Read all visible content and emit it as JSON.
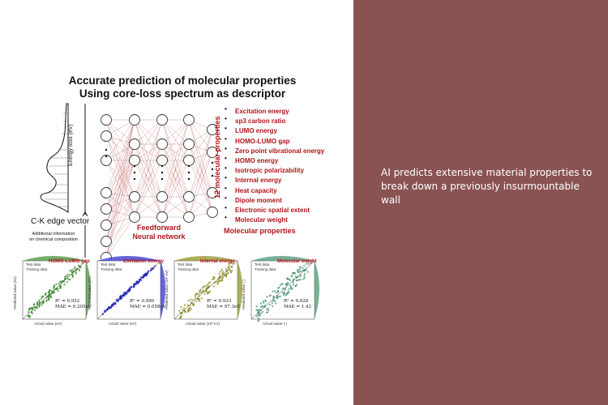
{
  "figure": {
    "title_line1": "Accurate prediction of molecular properties",
    "title_line2": "Using core-loss spectrum as descriptor",
    "energy_loss_label": "Energy loss (eV)",
    "ck_label": "C-K edge vector",
    "additional_info_line1": "Additional information",
    "additional_info_line2": "on chemical composition",
    "network_label_line1": "Feedforward",
    "network_label_line2": "Neural network",
    "twelve_props_label": "12 molecular properties",
    "molecular_properties_label": "Molecular properties",
    "properties": [
      "Excitation energy",
      "sp3 carbon ratio",
      "LUMO energy",
      "HOMO-LUMO gap",
      "Zero point vibrational energy",
      "HOMO energy",
      "Isotropic polarizability",
      "Internal energy",
      "Heat capacity",
      "Dipole moment",
      "Electronic spatial extent",
      "Molecular weight"
    ],
    "legend_test": "Test data",
    "legend_train": "Training data",
    "plots": [
      {
        "title": "HOMO-LUMO gap",
        "r2": "R² = 0.952",
        "mae": "MAE = 0.205eV",
        "color": "#3a8a2a",
        "xlabel": "Actual value (eV)",
        "ylabel": "Predicted value (eV)"
      },
      {
        "title": "Excitation energy",
        "r2": "R² = 0.990",
        "mae": "MAE = 0.058eV",
        "color": "#2222cc",
        "xlabel": "Actual value (eV)",
        "ylabel": "Predicted value (eV)"
      },
      {
        "title": "Internal energy",
        "r2": "R² = 0.933",
        "mae": "MAE = 97.3eV",
        "color": "#8a8a1a",
        "xlabel": "Actual value (10³ eV)",
        "ylabel": "Predicted value (10³ eV)"
      },
      {
        "title": "Molecular weight",
        "r2": "R² = 0.828",
        "mae": "MAE = 1.42",
        "color": "#3f8f6a",
        "xlabel": "Actual value (-)",
        "ylabel": "Predicted value (-)"
      }
    ]
  },
  "caption_text": "AI predicts extensive material properties to break down a previously insurmountable wall",
  "colors": {
    "panel": "#8a5353",
    "accent_red": "#b0151b"
  }
}
